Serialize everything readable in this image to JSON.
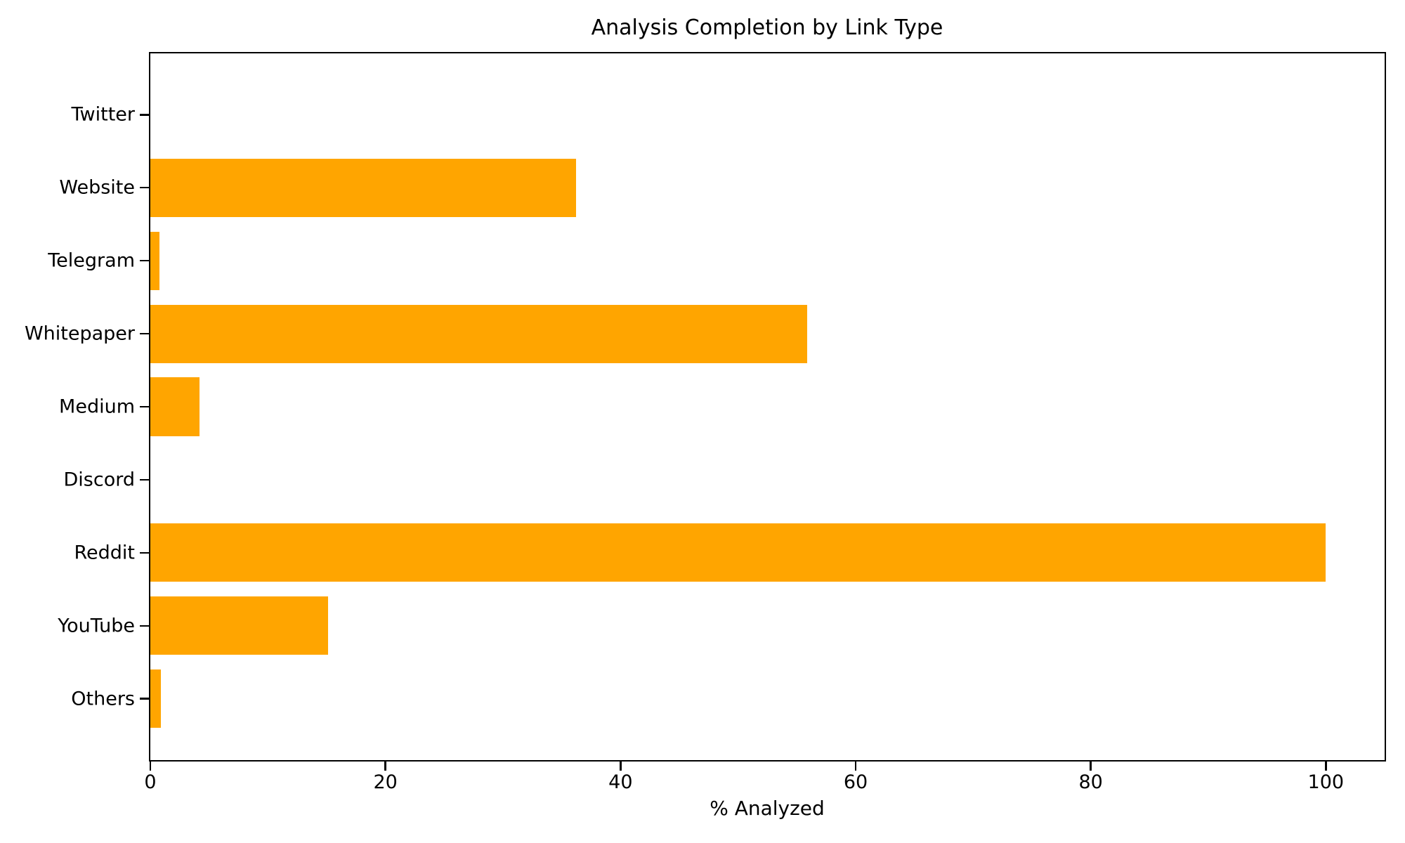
{
  "chart_data": {
    "type": "bar",
    "orientation": "horizontal",
    "title": "Analysis Completion by Link Type",
    "xlabel": "% Analyzed",
    "ylabel": "",
    "categories": [
      "Twitter",
      "Website",
      "Telegram",
      "Whitepaper",
      "Medium",
      "Discord",
      "Reddit",
      "YouTube",
      "Others"
    ],
    "values": [
      0,
      36.2,
      0.8,
      55.9,
      4.2,
      0,
      100,
      15.1,
      0.9
    ],
    "x_ticks": [
      0,
      20,
      40,
      60,
      80,
      100
    ],
    "xlim": [
      0,
      105
    ],
    "bar_color": "#FFA500",
    "axis_color": "#000000",
    "background_color": "#FFFFFF",
    "grid": false,
    "legend": "none"
  }
}
